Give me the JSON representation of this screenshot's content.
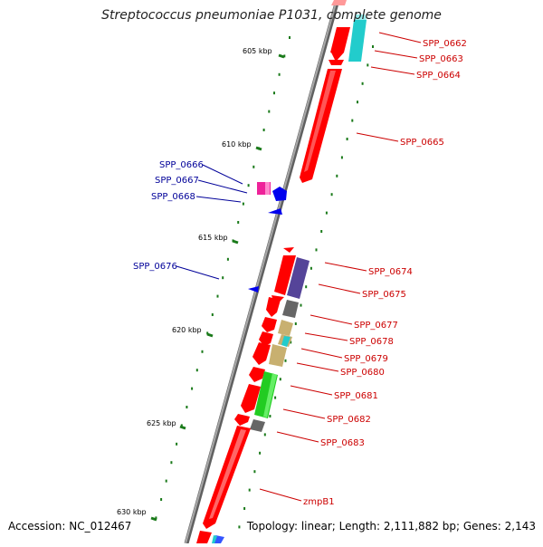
{
  "title": "Streptococcus pneumoniae P1031, complete genome",
  "footer": {
    "accession": "Accession: NC_012467",
    "topology": "Topology: linear; Length: 2,111,882 bp; Genes: 2,143"
  },
  "colors": {
    "backbone": "#808080",
    "tick": "#1a7a1a",
    "gene_red": "#ff0000",
    "label_red": "#cc0000",
    "label_blue": "#000099",
    "gene_blue": "#0000ee",
    "magenta": "#ee2299",
    "cyan": "#22cccc",
    "purple": "#554499",
    "grey": "#666666",
    "khaki": "#c8b070",
    "green": "#22cc22"
  },
  "ruler": [
    {
      "label": "605 kbp"
    },
    {
      "label": "610 kbp"
    },
    {
      "label": "615 kbp"
    },
    {
      "label": "620 kbp"
    },
    {
      "label": "625 kbp"
    },
    {
      "label": "630 kbp"
    }
  ],
  "genes_right": [
    {
      "label": "SPP_0662"
    },
    {
      "label": "SPP_0663"
    },
    {
      "label": "SPP_0664"
    },
    {
      "label": "SPP_0665"
    },
    {
      "label": "SPP_0674"
    },
    {
      "label": "SPP_0675"
    },
    {
      "label": "SPP_0677"
    },
    {
      "label": "SPP_0678"
    },
    {
      "label": "SPP_0679"
    },
    {
      "label": "SPP_0680"
    },
    {
      "label": "SPP_0681"
    },
    {
      "label": "SPP_0682"
    },
    {
      "label": "SPP_0683"
    },
    {
      "label": "zmpB1"
    }
  ],
  "genes_left": [
    {
      "label": "SPP_0666"
    },
    {
      "label": "SPP_0667"
    },
    {
      "label": "SPP_0668"
    },
    {
      "label": "SPP_0676"
    }
  ]
}
